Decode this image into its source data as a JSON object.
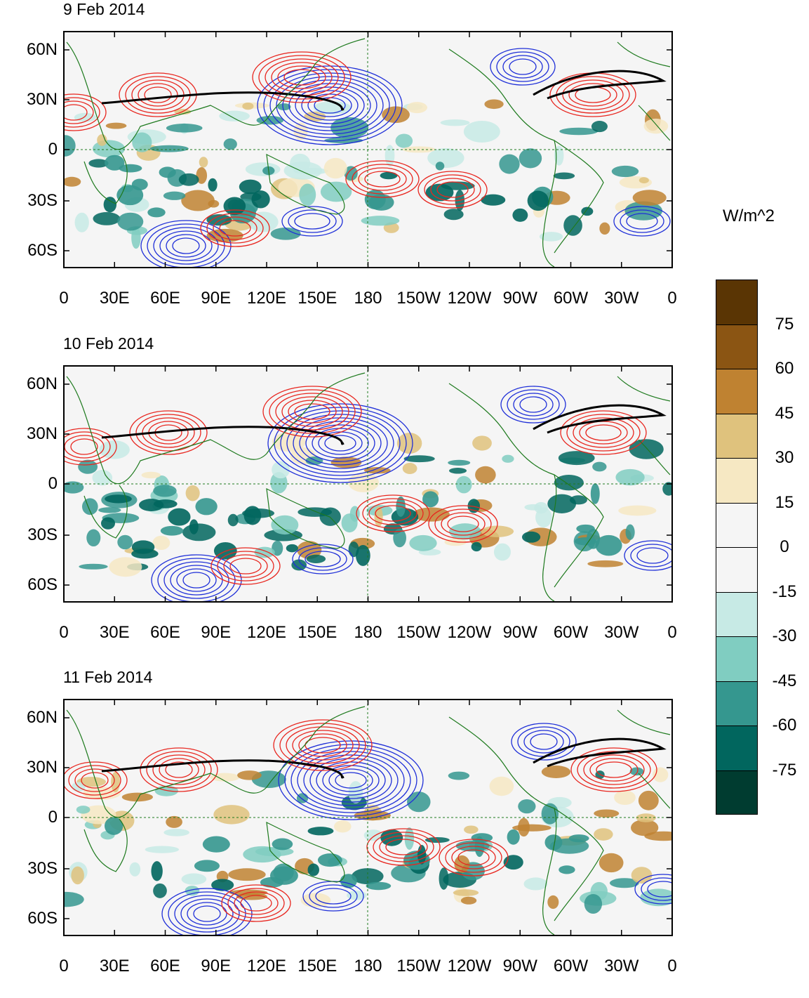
{
  "panels": [
    {
      "title": "9 Feb 2014"
    },
    {
      "title": "10 Feb 2014"
    },
    {
      "title": "11 Feb 2014"
    }
  ],
  "lat_ticks": [
    "60N",
    "30N",
    "0",
    "30S",
    "60S"
  ],
  "lon_ticks": [
    "0",
    "30E",
    "60E",
    "90E",
    "120E",
    "150E",
    "180",
    "150W",
    "120W",
    "90W",
    "60W",
    "30W",
    "0"
  ],
  "colorbar": {
    "units": "W/m^2",
    "labels": [
      "75",
      "60",
      "45",
      "30",
      "15",
      "0",
      "-15",
      "-30",
      "-45",
      "-60",
      "-75"
    ],
    "colors": [
      "#5a3504",
      "#8b5513",
      "#bf8231",
      "#dfc27d",
      "#f6e8c3",
      "#f5f5f5",
      "#f5f5f5",
      "#c7eae5",
      "#80cdc1",
      "#35978f",
      "#01665e",
      "#003c30"
    ]
  },
  "colors": {
    "coast": "#1e7a1e",
    "positive_contour": "#e8261f",
    "negative_contour": "#1f2fd8",
    "jet": "#000000"
  }
}
